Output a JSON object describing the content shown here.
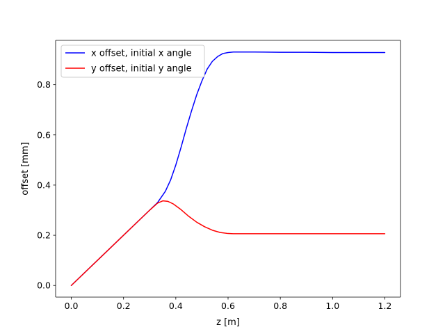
{
  "chart_data": {
    "type": "line",
    "title": "",
    "xlabel": "z [m]",
    "ylabel": "offset [mm]",
    "xlim": [
      -0.06,
      1.26
    ],
    "ylim": [
      -0.0465,
      0.9765
    ],
    "xticks": [
      {
        "value": 0.0,
        "label": "0.0"
      },
      {
        "value": 0.2,
        "label": "0.2"
      },
      {
        "value": 0.4,
        "label": "0.4"
      },
      {
        "value": 0.6,
        "label": "0.6"
      },
      {
        "value": 0.8,
        "label": "0.8"
      },
      {
        "value": 1.0,
        "label": "1.0"
      },
      {
        "value": 1.2,
        "label": "1.2"
      }
    ],
    "yticks": [
      {
        "value": 0.0,
        "label": "0.0"
      },
      {
        "value": 0.2,
        "label": "0.2"
      },
      {
        "value": 0.4,
        "label": "0.4"
      },
      {
        "value": 0.6,
        "label": "0.6"
      },
      {
        "value": 0.8,
        "label": "0.8"
      }
    ],
    "grid": false,
    "legend_position": "upper-left",
    "series": [
      {
        "name": "x offset, initial x angle",
        "color": "#0000ff",
        "x": [
          0.0,
          0.1,
          0.2,
          0.3,
          0.33,
          0.36,
          0.38,
          0.4,
          0.42,
          0.44,
          0.46,
          0.48,
          0.5,
          0.52,
          0.54,
          0.56,
          0.58,
          0.6,
          0.62,
          0.7,
          0.8,
          0.9,
          1.0,
          1.1,
          1.2
        ],
        "y": [
          0.0,
          0.1,
          0.2,
          0.3,
          0.33,
          0.375,
          0.42,
          0.48,
          0.55,
          0.625,
          0.695,
          0.76,
          0.815,
          0.862,
          0.893,
          0.912,
          0.924,
          0.928,
          0.93,
          0.93,
          0.929,
          0.929,
          0.928,
          0.928,
          0.928
        ]
      },
      {
        "name": "y offset, initial y angle",
        "color": "#ff0000",
        "x": [
          0.0,
          0.1,
          0.2,
          0.3,
          0.33,
          0.35,
          0.37,
          0.39,
          0.42,
          0.45,
          0.48,
          0.51,
          0.54,
          0.57,
          0.6,
          0.62,
          0.7,
          0.8,
          0.9,
          1.0,
          1.1,
          1.2
        ],
        "y": [
          0.0,
          0.1,
          0.2,
          0.3,
          0.328,
          0.337,
          0.335,
          0.325,
          0.302,
          0.275,
          0.252,
          0.234,
          0.22,
          0.211,
          0.207,
          0.206,
          0.206,
          0.206,
          0.206,
          0.206,
          0.206,
          0.206
        ]
      }
    ]
  }
}
